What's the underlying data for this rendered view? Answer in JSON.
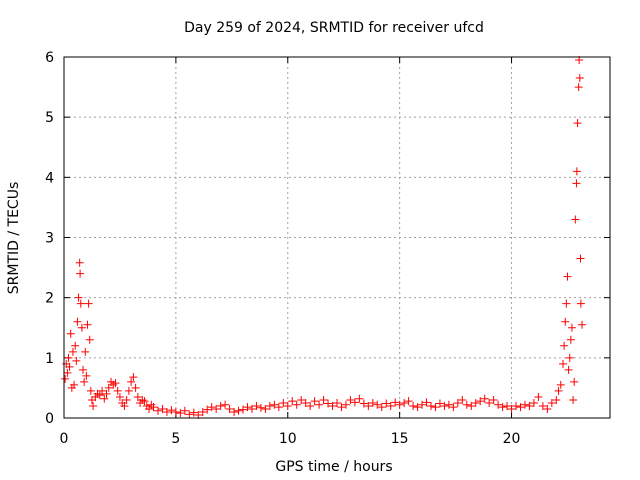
{
  "chart_data": {
    "type": "scatter",
    "title": "Day 259 of 2024, SRMTID for receiver ufcd",
    "xlabel": "GPS time / hours",
    "ylabel": "SRMTID / TECUs",
    "xlim": [
      0,
      24.4
    ],
    "ylim": [
      0,
      6
    ],
    "xticks": [
      0,
      5,
      10,
      15,
      20
    ],
    "yticks": [
      0,
      1,
      2,
      3,
      4,
      5,
      6
    ],
    "grid": true,
    "marker": "+",
    "color": "#ff0000",
    "series": [
      {
        "name": "SRMTID",
        "points": [
          [
            0.05,
            0.65
          ],
          [
            0.1,
            0.9
          ],
          [
            0.15,
            0.75
          ],
          [
            0.2,
            1.0
          ],
          [
            0.25,
            0.85
          ],
          [
            0.3,
            1.4
          ],
          [
            0.35,
            0.5
          ],
          [
            0.4,
            1.1
          ],
          [
            0.45,
            0.55
          ],
          [
            0.5,
            1.2
          ],
          [
            0.55,
            0.95
          ],
          [
            0.6,
            1.6
          ],
          [
            0.65,
            2.0
          ],
          [
            0.7,
            2.58
          ],
          [
            0.72,
            2.4
          ],
          [
            0.75,
            1.9
          ],
          [
            0.8,
            1.5
          ],
          [
            0.85,
            0.8
          ],
          [
            0.9,
            0.6
          ],
          [
            0.95,
            1.1
          ],
          [
            1.0,
            0.7
          ],
          [
            1.05,
            1.55
          ],
          [
            1.1,
            1.9
          ],
          [
            1.15,
            1.3
          ],
          [
            1.2,
            0.45
          ],
          [
            1.25,
            0.3
          ],
          [
            1.3,
            0.2
          ],
          [
            1.4,
            0.35
          ],
          [
            1.5,
            0.4
          ],
          [
            1.6,
            0.38
          ],
          [
            1.7,
            0.45
          ],
          [
            1.8,
            0.32
          ],
          [
            1.9,
            0.4
          ],
          [
            2.0,
            0.5
          ],
          [
            2.1,
            0.6
          ],
          [
            2.2,
            0.55
          ],
          [
            2.3,
            0.58
          ],
          [
            2.4,
            0.45
          ],
          [
            2.5,
            0.35
          ],
          [
            2.6,
            0.25
          ],
          [
            2.7,
            0.2
          ],
          [
            2.8,
            0.3
          ],
          [
            2.9,
            0.45
          ],
          [
            3.0,
            0.6
          ],
          [
            3.1,
            0.68
          ],
          [
            3.2,
            0.5
          ],
          [
            3.3,
            0.35
          ],
          [
            3.4,
            0.25
          ],
          [
            3.5,
            0.3
          ],
          [
            3.6,
            0.28
          ],
          [
            3.7,
            0.2
          ],
          [
            3.8,
            0.15
          ],
          [
            3.9,
            0.22
          ],
          [
            4.0,
            0.18
          ],
          [
            4.2,
            0.12
          ],
          [
            4.4,
            0.15
          ],
          [
            4.6,
            0.1
          ],
          [
            4.8,
            0.13
          ],
          [
            5.0,
            0.1
          ],
          [
            5.2,
            0.08
          ],
          [
            5.4,
            0.12
          ],
          [
            5.6,
            0.06
          ],
          [
            5.8,
            0.09
          ],
          [
            6.0,
            0.05
          ],
          [
            6.2,
            0.1
          ],
          [
            6.4,
            0.14
          ],
          [
            6.6,
            0.18
          ],
          [
            6.8,
            0.15
          ],
          [
            7.0,
            0.2
          ],
          [
            7.2,
            0.22
          ],
          [
            7.4,
            0.15
          ],
          [
            7.6,
            0.1
          ],
          [
            7.8,
            0.12
          ],
          [
            8.0,
            0.14
          ],
          [
            8.2,
            0.18
          ],
          [
            8.4,
            0.15
          ],
          [
            8.6,
            0.2
          ],
          [
            8.8,
            0.17
          ],
          [
            9.0,
            0.15
          ],
          [
            9.2,
            0.2
          ],
          [
            9.4,
            0.22
          ],
          [
            9.6,
            0.18
          ],
          [
            9.8,
            0.25
          ],
          [
            10.0,
            0.2
          ],
          [
            10.2,
            0.28
          ],
          [
            10.4,
            0.22
          ],
          [
            10.6,
            0.3
          ],
          [
            10.8,
            0.25
          ],
          [
            11.0,
            0.2
          ],
          [
            11.2,
            0.28
          ],
          [
            11.4,
            0.22
          ],
          [
            11.6,
            0.3
          ],
          [
            11.8,
            0.24
          ],
          [
            12.0,
            0.2
          ],
          [
            12.2,
            0.25
          ],
          [
            12.4,
            0.18
          ],
          [
            12.6,
            0.22
          ],
          [
            12.8,
            0.3
          ],
          [
            13.0,
            0.26
          ],
          [
            13.2,
            0.32
          ],
          [
            13.4,
            0.24
          ],
          [
            13.6,
            0.2
          ],
          [
            13.8,
            0.25
          ],
          [
            14.0,
            0.22
          ],
          [
            14.2,
            0.18
          ],
          [
            14.4,
            0.24
          ],
          [
            14.6,
            0.2
          ],
          [
            14.8,
            0.26
          ],
          [
            15.0,
            0.22
          ],
          [
            15.2,
            0.25
          ],
          [
            15.4,
            0.28
          ],
          [
            15.6,
            0.2
          ],
          [
            15.8,
            0.18
          ],
          [
            16.0,
            0.22
          ],
          [
            16.2,
            0.26
          ],
          [
            16.4,
            0.2
          ],
          [
            16.6,
            0.18
          ],
          [
            16.8,
            0.24
          ],
          [
            17.0,
            0.2
          ],
          [
            17.2,
            0.22
          ],
          [
            17.4,
            0.18
          ],
          [
            17.6,
            0.25
          ],
          [
            17.8,
            0.3
          ],
          [
            18.0,
            0.22
          ],
          [
            18.2,
            0.2
          ],
          [
            18.4,
            0.25
          ],
          [
            18.6,
            0.28
          ],
          [
            18.8,
            0.32
          ],
          [
            19.0,
            0.25
          ],
          [
            19.2,
            0.3
          ],
          [
            19.4,
            0.22
          ],
          [
            19.6,
            0.18
          ],
          [
            19.8,
            0.2
          ],
          [
            20.0,
            0.15
          ],
          [
            20.2,
            0.2
          ],
          [
            20.4,
            0.18
          ],
          [
            20.6,
            0.22
          ],
          [
            20.8,
            0.2
          ],
          [
            21.0,
            0.25
          ],
          [
            21.2,
            0.35
          ],
          [
            21.4,
            0.2
          ],
          [
            21.6,
            0.15
          ],
          [
            21.8,
            0.25
          ],
          [
            22.0,
            0.3
          ],
          [
            22.1,
            0.45
          ],
          [
            22.2,
            0.55
          ],
          [
            22.3,
            0.9
          ],
          [
            22.35,
            1.2
          ],
          [
            22.4,
            1.6
          ],
          [
            22.45,
            1.9
          ],
          [
            22.5,
            2.35
          ],
          [
            22.55,
            0.8
          ],
          [
            22.6,
            1.0
          ],
          [
            22.65,
            1.3
          ],
          [
            22.7,
            1.5
          ],
          [
            22.75,
            0.3
          ],
          [
            22.8,
            0.6
          ],
          [
            22.85,
            3.3
          ],
          [
            22.9,
            3.9
          ],
          [
            22.92,
            4.1
          ],
          [
            22.95,
            4.9
          ],
          [
            23.0,
            5.5
          ],
          [
            23.02,
            5.95
          ],
          [
            23.05,
            5.65
          ],
          [
            23.08,
            2.65
          ],
          [
            23.1,
            1.9
          ],
          [
            23.15,
            1.55
          ]
        ]
      }
    ]
  }
}
